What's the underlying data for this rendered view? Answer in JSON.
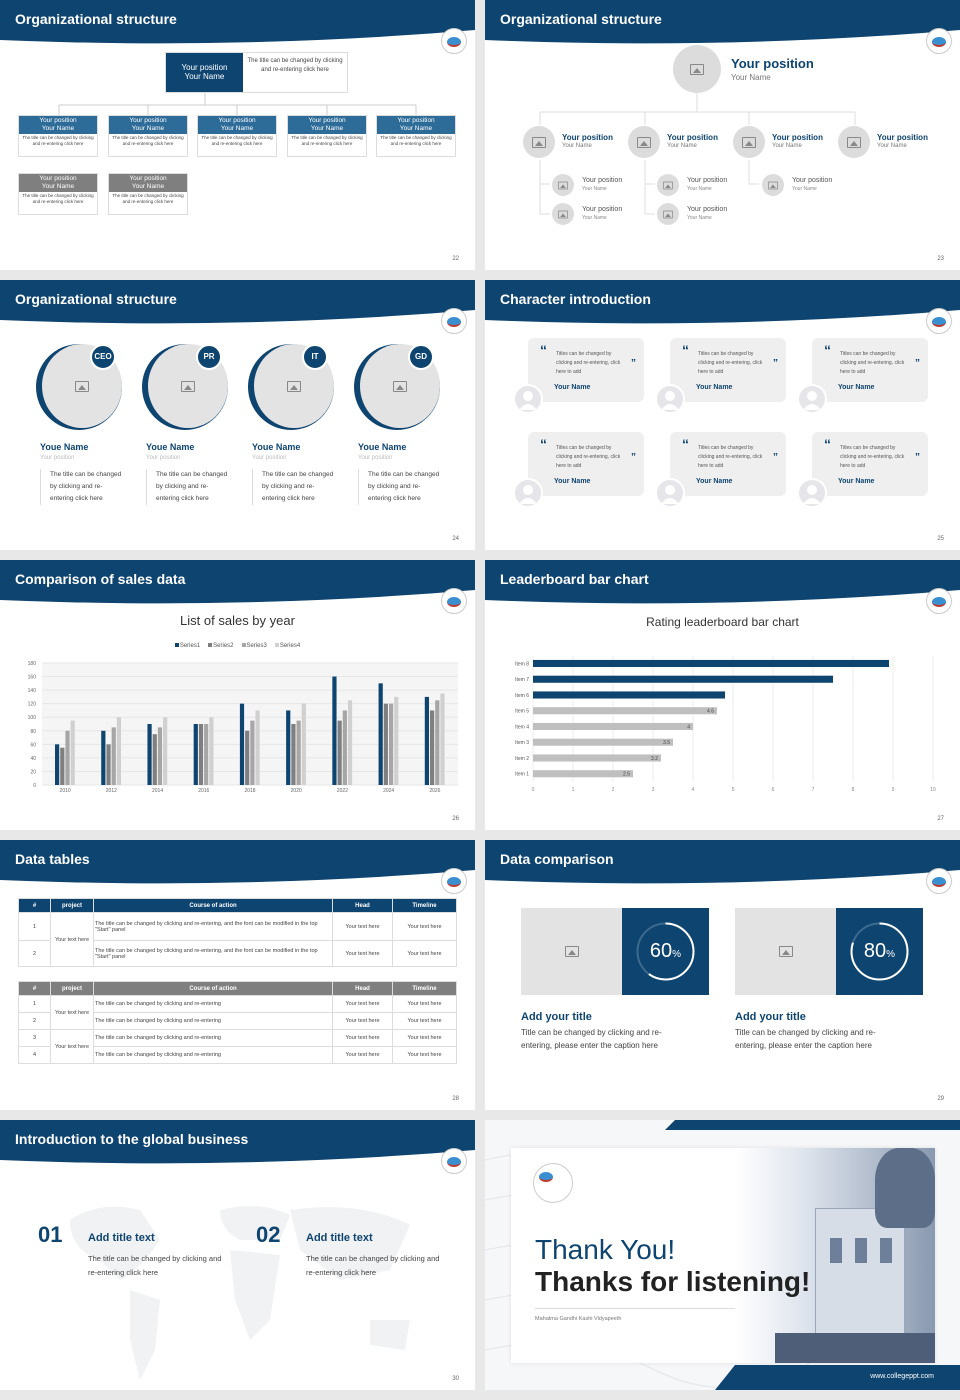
{
  "slides": {
    "s22": {
      "title": "Organizational structure",
      "page": "22",
      "top": {
        "pos": "Your position",
        "name": "Your Name",
        "desc": "The title can be changed by clicking and re-entering click here"
      },
      "boxes": [
        {
          "pos": "Your position",
          "name": "Your Name",
          "desc": "The title can be changed by clicking and re-entering click here"
        },
        {
          "pos": "Your position",
          "name": "Your Name",
          "desc": "The title can be changed by clicking and re-entering click here"
        },
        {
          "pos": "Your position",
          "name": "Your Name",
          "desc": "The title can be changed by clicking and re-entering click here"
        },
        {
          "pos": "Your position",
          "name": "Your Name",
          "desc": "The title can be changed by clicking and re-entering click here"
        },
        {
          "pos": "Your position",
          "name": "Your Name",
          "desc": "The title can be changed by clicking and re-entering click here"
        },
        {
          "pos": "Your position",
          "name": "Your Name",
          "desc": "The title can be changed by clicking and re-entering click here"
        },
        {
          "pos": "Your position",
          "name": "Your Name",
          "desc": "The title can be changed by clicking and re-entering click here"
        }
      ]
    },
    "s23": {
      "title": "Organizational structure",
      "page": "23",
      "top": {
        "pos": "Your position",
        "name": "Your Name"
      },
      "mid": [
        {
          "pos": "Your position",
          "name": "Your Name"
        },
        {
          "pos": "Your position",
          "name": "Your Name"
        },
        {
          "pos": "Your position",
          "name": "Your Name"
        },
        {
          "pos": "Your position",
          "name": "Your Name"
        }
      ],
      "sub": [
        {
          "pos": "Your position",
          "name": "Your Name"
        },
        {
          "pos": "Your position",
          "name": "Your Name"
        },
        {
          "pos": "Your position",
          "name": "Your Name"
        },
        {
          "pos": "Your position",
          "name": "Your Name"
        },
        {
          "pos": "Your position",
          "name": "Your Name"
        }
      ]
    },
    "s24": {
      "title": "Organizational structure",
      "page": "24",
      "people": [
        {
          "badge": "CEO",
          "name": "Youe Name",
          "pos": "Your position",
          "desc": "The title can be changed by clicking and re-entering click here"
        },
        {
          "badge": "PR",
          "name": "Youe Name",
          "pos": "Your position",
          "desc": "The title can be changed by clicking and re-entering click here"
        },
        {
          "badge": "IT",
          "name": "Youe Name",
          "pos": "Your position",
          "desc": "The title can be changed by clicking and re-entering click here"
        },
        {
          "badge": "GD",
          "name": "Youe Name",
          "pos": "Your position",
          "desc": "The title can be changed by clicking and re-entering click here"
        }
      ]
    },
    "s25": {
      "title": "Character introduction",
      "page": "25",
      "cards": [
        {
          "text": "Titles can be changed by clicking and re-entering, click here to add",
          "name": "Your Name"
        },
        {
          "text": "Titles can be changed by clicking and re-entering, click here to add",
          "name": "Your Name"
        },
        {
          "text": "Titles can be changed by clicking and re-entering, click here to add",
          "name": "Your Name"
        },
        {
          "text": "Titles can be changed by clicking and re-entering, click here to add",
          "name": "Your Name"
        },
        {
          "text": "Titles can be changed by clicking and re-entering, click here to add",
          "name": "Your Name"
        },
        {
          "text": "Titles can be changed by clicking and re-entering, click here to add",
          "name": "Your Name"
        }
      ]
    },
    "s26": {
      "title": "Comparison of sales data",
      "page": "26"
    },
    "s27": {
      "title": "Leaderboard bar chart",
      "page": "27"
    },
    "s28": {
      "title": "Data tables",
      "page": "28",
      "t1": {
        "headers": [
          "#",
          "project",
          "Course of action",
          "Head",
          "Timeline"
        ],
        "rows": [
          {
            "n": "1",
            "action": "The title can be changed by clicking and re-entering, and the font can be modified in the top \"Start\" panel",
            "head": "Your text here",
            "time": "Your text here"
          },
          {
            "n": "2",
            "action": "The title can be changed by clicking and re-entering, and the font can be modified in the top \"Start\" panel",
            "head": "Your text here",
            "time": "Your text here"
          }
        ],
        "project": "Your text here"
      },
      "t2": {
        "headers": [
          "#",
          "project",
          "Course of action",
          "Head",
          "Timeline"
        ],
        "rows": [
          {
            "n": "1",
            "action": "The title can be changed by clicking and re-entering",
            "head": "Your text here",
            "time": "Your text here"
          },
          {
            "n": "2",
            "action": "The title can be changed by clicking and re-entering",
            "head": "Your text here",
            "time": "Your text here"
          },
          {
            "n": "3",
            "action": "The title can be changed by clicking and re-entering",
            "head": "Your text here",
            "time": "Your text here"
          },
          {
            "n": "4",
            "action": "The title can be changed by clicking and re-entering",
            "head": "Your text here",
            "time": "Your text here"
          }
        ],
        "project1": "Your text here",
        "project2": "Your text here"
      }
    },
    "s29": {
      "title": "Data comparison",
      "page": "29",
      "items": [
        {
          "pct": "60",
          "unit": "%",
          "value": 0.6,
          "title": "Add your title",
          "desc": "Title can be changed by clicking and re-entering, please enter the caption here"
        },
        {
          "pct": "80",
          "unit": "%",
          "value": 0.8,
          "title": "Add your title",
          "desc": "Title can be changed by clicking and re-entering, please enter the caption here"
        }
      ]
    },
    "s30": {
      "title": "Introduction to the global business",
      "page": "30",
      "items": [
        {
          "num": "01",
          "title": "Add title text",
          "desc": "The title can be changed by clicking and re-entering click here"
        },
        {
          "num": "02",
          "title": "Add title text",
          "desc": "The title can be changed by clicking and re-entering click here"
        }
      ]
    },
    "s31": {
      "thanks": "Thank You!",
      "listening": "Thanks for listening!",
      "school": "Mahatma Gandhi Kashi Vidyapeeth",
      "url": "www.collegeppt.com"
    }
  },
  "chart_data": [
    {
      "type": "bar",
      "title": "List of sales by year",
      "categories": [
        "2010",
        "2012",
        "2014",
        "2016",
        "2018",
        "2020",
        "2022",
        "2024",
        "2026"
      ],
      "series": [
        {
          "name": "Series1",
          "values": [
            60,
            80,
            90,
            90,
            120,
            110,
            160,
            150,
            130
          ]
        },
        {
          "name": "Series2",
          "values": [
            55,
            60,
            75,
            90,
            80,
            90,
            95,
            120,
            110
          ]
        },
        {
          "name": "Series3",
          "values": [
            80,
            85,
            85,
            90,
            95,
            95,
            110,
            120,
            125
          ]
        },
        {
          "name": "Series4",
          "values": [
            95,
            100,
            100,
            100,
            110,
            120,
            125,
            130,
            135
          ]
        }
      ],
      "ylim": [
        0,
        180
      ],
      "yticks": [
        "0",
        "20",
        "40",
        "60",
        "80",
        "100",
        "120",
        "140",
        "160",
        "180"
      ],
      "colors": [
        "#0e4470",
        "#7f7f7f",
        "#a6a6a6",
        "#d0d0d0"
      ],
      "legend": "top"
    },
    {
      "type": "bar",
      "orientation": "horizontal",
      "title": "Rating leaderboard bar chart",
      "categories": [
        "Item 1",
        "Item 2",
        "Item 3",
        "Item 4",
        "Item 5",
        "Item 6",
        "Item 7",
        "Item 8"
      ],
      "values": [
        2.5,
        3.2,
        3.5,
        4,
        4.6,
        4.8,
        7.5,
        8.9
      ],
      "labels": [
        "2.5",
        "3.2",
        "3.5",
        "4",
        "4.6",
        "",
        "",
        ""
      ],
      "xlim": [
        0,
        10
      ],
      "xticks": [
        "0",
        "1",
        "2",
        "3",
        "4",
        "5",
        "6",
        "7",
        "8",
        "9",
        "10"
      ],
      "colors": {
        "top": "#0e4470",
        "rest": "#bfbfbf"
      }
    }
  ]
}
